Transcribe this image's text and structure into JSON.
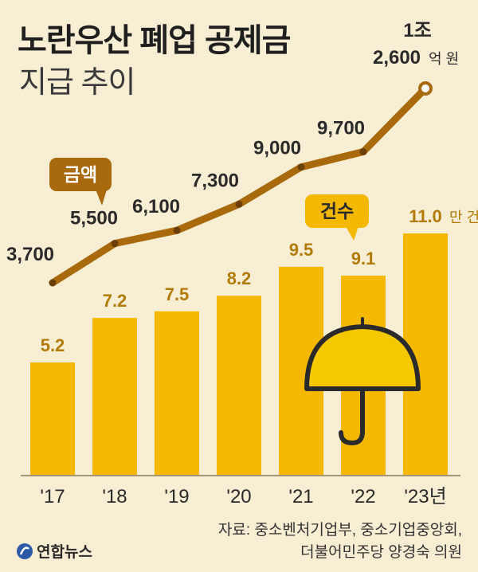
{
  "title": "노란우산 폐업 공제금",
  "subtitle": "지급 추이",
  "source_line1": "자료: 중소벤처기업부, 중소기업중앙회,",
  "source_line2": "더불어민주당 양경숙 의원",
  "logo_text": "연합뉴스",
  "colors": {
    "background": "#F8EED4",
    "bar": "#F5B800",
    "line": "#A86A0C",
    "text": "#2a2a2a",
    "bar_label": "#B27A06",
    "umbrella": "#F5C800"
  },
  "chart_data": {
    "type": "bar+line",
    "categories": [
      "'17",
      "'18",
      "'19",
      "'20",
      "'21",
      "'22",
      "'23년"
    ],
    "bar_series": {
      "name": "건수",
      "unit": "만 건",
      "values": [
        5.2,
        7.2,
        7.5,
        8.2,
        9.5,
        9.1,
        11.0
      ],
      "labels": [
        "5.2",
        "7.2",
        "7.5",
        "8.2",
        "9.5",
        "9.1",
        "11.0"
      ]
    },
    "line_series": {
      "name": "금액",
      "unit": "억 원",
      "values": [
        3700,
        5500,
        6100,
        7300,
        9000,
        9700,
        12600
      ],
      "labels": [
        "3,700",
        "5,500",
        "6,100",
        "7,300",
        "9,000",
        "9,700",
        "1조 2,600"
      ]
    }
  }
}
